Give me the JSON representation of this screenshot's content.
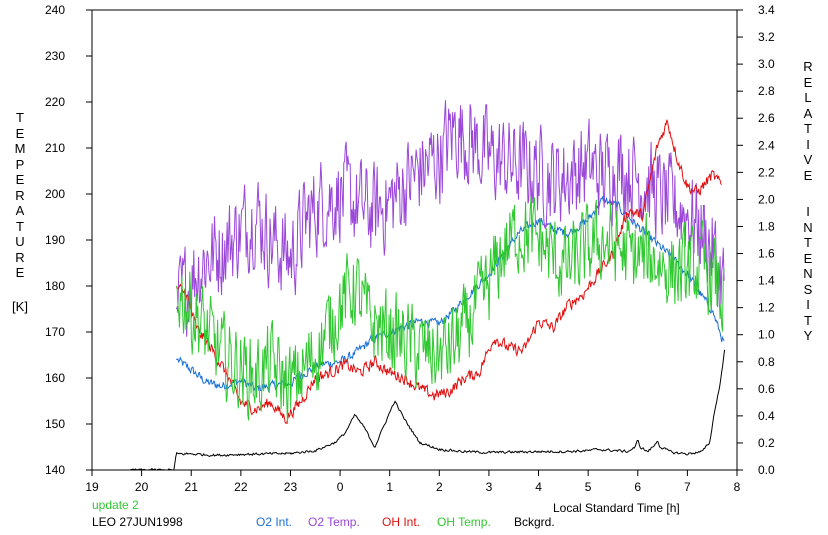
{
  "chart_data": {
    "type": "line",
    "xlabel": "Local Standard Time [h]",
    "ylabel_left_letters": [
      "T",
      "E",
      "M",
      "P",
      "E",
      "R",
      "A",
      "T",
      "U",
      "R",
      "E"
    ],
    "ylabel_left_unit": "[K]",
    "ylabel_right_letters_1": [
      "R",
      "E",
      "L",
      "A",
      "T",
      "I",
      "V",
      "E"
    ],
    "ylabel_right_letters_2": [
      "I",
      "N",
      "T",
      "E",
      "N",
      "S",
      "I",
      "T",
      "Y"
    ],
    "xlim": [
      19,
      32
    ],
    "x_ticks": [
      19,
      20,
      21,
      22,
      23,
      24,
      25,
      26,
      27,
      28,
      29,
      30,
      31,
      32
    ],
    "x_tick_labels": [
      "19",
      "20",
      "21",
      "22",
      "23",
      "0",
      "1",
      "2",
      "3",
      "4",
      "5",
      "6",
      "7",
      "8"
    ],
    "ylim_left": [
      140,
      240
    ],
    "y_ticks_left": [
      140,
      150,
      160,
      170,
      180,
      190,
      200,
      210,
      220,
      230,
      240
    ],
    "y_tick_labels_left": [
      "140",
      "150",
      "160",
      "170",
      "180",
      "190",
      "200",
      "210",
      "220",
      "230",
      "240"
    ],
    "ylim_right": [
      0,
      3.4
    ],
    "y_ticks_right": [
      0,
      0.2,
      0.4,
      0.6,
      0.8,
      1.0,
      1.2,
      1.4,
      1.6,
      1.8,
      2.0,
      2.2,
      2.4,
      2.6,
      2.8,
      3.0,
      3.2,
      3.4
    ],
    "y_tick_labels_right": [
      "0.0",
      "0.2",
      "0.4",
      "0.6",
      "0.8",
      "1.0",
      "1.2",
      "1.4",
      "1.6",
      "1.8",
      "2.0",
      "2.2",
      "2.4",
      "2.6",
      "2.8",
      "3.0",
      "3.2",
      "3.4"
    ],
    "grid": false,
    "series": [
      {
        "name": "O2 Int.",
        "color": "#1a6fd6",
        "axis": "right",
        "noise": 0.03,
        "x": [
          20.7,
          21.0,
          21.3,
          21.6,
          22.0,
          22.3,
          22.6,
          23.0,
          23.3,
          23.6,
          24.0,
          24.3,
          24.6,
          25.0,
          25.3,
          25.6,
          26.0,
          26.3,
          26.6,
          27.0,
          27.3,
          27.6,
          28.0,
          28.3,
          28.6,
          29.0,
          29.3,
          29.6,
          30.0,
          30.3,
          30.6,
          31.0,
          31.3,
          31.5,
          31.75
        ],
        "y": [
          0.82,
          0.74,
          0.65,
          0.62,
          0.66,
          0.6,
          0.62,
          0.64,
          0.72,
          0.78,
          0.8,
          0.86,
          0.95,
          1.02,
          1.06,
          1.1,
          1.08,
          1.18,
          1.3,
          1.45,
          1.6,
          1.75,
          1.85,
          1.78,
          1.75,
          1.85,
          2.0,
          1.95,
          1.8,
          1.7,
          1.6,
          1.45,
          1.28,
          1.18,
          0.92
        ]
      },
      {
        "name": "O2 Temp.",
        "color": "#9b48d8",
        "axis": "left",
        "noise": 9,
        "x": [
          20.7,
          21.0,
          21.3,
          21.6,
          22.0,
          22.3,
          22.6,
          23.0,
          23.3,
          23.6,
          24.0,
          24.3,
          24.6,
          25.0,
          25.3,
          25.6,
          26.0,
          26.3,
          26.6,
          27.0,
          27.3,
          27.6,
          28.0,
          28.3,
          28.6,
          29.0,
          29.3,
          29.6,
          30.0,
          30.3,
          30.6,
          31.0,
          31.3,
          31.5,
          31.75
        ],
        "y": [
          175,
          182,
          186,
          188,
          192,
          196,
          190,
          186,
          194,
          198,
          200,
          198,
          196,
          198,
          202,
          205,
          208,
          214,
          212,
          208,
          207,
          206,
          205,
          203,
          204,
          206,
          204,
          206,
          204,
          201,
          198,
          196,
          192,
          188,
          180
        ]
      },
      {
        "name": "OH Int.",
        "color": "#e01010",
        "axis": "right",
        "noise": 0.04,
        "x": [
          20.7,
          20.9,
          21.1,
          21.4,
          21.7,
          22.0,
          22.3,
          22.6,
          22.9,
          23.2,
          23.5,
          23.8,
          24.1,
          24.4,
          24.7,
          25.0,
          25.3,
          25.6,
          25.9,
          26.2,
          26.5,
          26.8,
          27.1,
          27.4,
          27.7,
          28.0,
          28.3,
          28.6,
          28.9,
          29.2,
          29.5,
          29.8,
          30.1,
          30.4,
          30.6,
          30.8,
          31.0,
          31.2,
          31.5,
          31.7
        ],
        "y": [
          1.35,
          1.3,
          1.05,
          0.9,
          0.72,
          0.5,
          0.45,
          0.5,
          0.38,
          0.5,
          0.68,
          0.72,
          0.78,
          0.72,
          0.8,
          0.72,
          0.68,
          0.6,
          0.55,
          0.58,
          0.68,
          0.72,
          0.98,
          0.9,
          0.88,
          1.1,
          1.05,
          1.22,
          1.3,
          1.45,
          1.6,
          1.92,
          1.88,
          2.4,
          2.58,
          2.3,
          2.1,
          2.05,
          2.18,
          2.1
        ]
      },
      {
        "name": "OH Temp.",
        "color": "#30c830",
        "axis": "left",
        "noise": 8,
        "x": [
          20.7,
          21.0,
          21.3,
          21.6,
          22.0,
          22.3,
          22.6,
          23.0,
          23.3,
          23.6,
          24.0,
          24.3,
          24.6,
          25.0,
          25.3,
          25.6,
          26.0,
          26.3,
          26.6,
          27.0,
          27.3,
          27.6,
          28.0,
          28.3,
          28.6,
          29.0,
          29.3,
          29.6,
          30.0,
          30.3,
          30.6,
          31.0,
          31.3,
          31.5,
          31.75
        ],
        "y": [
          180,
          175,
          170,
          165,
          162,
          160,
          163,
          158,
          162,
          167,
          176,
          180,
          172,
          170,
          168,
          166,
          165,
          167,
          172,
          180,
          188,
          192,
          190,
          186,
          184,
          188,
          190,
          188,
          186,
          186,
          184,
          183,
          184,
          182,
          176
        ]
      },
      {
        "name": "Bckgrd.",
        "color": "#000000",
        "axis": "left",
        "noise": 0.25,
        "x": [
          19.75,
          20.3,
          20.65,
          20.7,
          21.0,
          21.5,
          22.0,
          22.5,
          23.0,
          23.5,
          23.9,
          24.1,
          24.3,
          24.5,
          24.7,
          24.9,
          25.1,
          25.3,
          25.6,
          26.0,
          26.5,
          27.0,
          27.5,
          28.0,
          28.5,
          29.0,
          29.2,
          29.4,
          29.6,
          29.8,
          29.95,
          30.0,
          30.05,
          30.2,
          30.35,
          30.4,
          30.45,
          30.7,
          31.0,
          31.3,
          31.45,
          31.55,
          31.65,
          31.75
        ],
        "y": [
          140,
          140,
          140,
          143.5,
          143.5,
          143.2,
          143.4,
          143.5,
          143.6,
          144.2,
          146,
          148,
          152,
          149,
          145,
          150,
          155,
          151,
          146,
          144.5,
          144,
          143.8,
          143.9,
          144,
          144,
          144.2,
          144.5,
          144.3,
          144.2,
          144,
          145,
          146.5,
          145,
          144,
          145.5,
          146.5,
          145,
          143.8,
          143.5,
          144,
          146,
          153,
          158,
          166
        ]
      }
    ]
  },
  "bottom": {
    "update_text": "update 2",
    "station_date": "LEO 27JUN1998",
    "legend": [
      {
        "label": "O2 Int.",
        "color": "#1a6fd6"
      },
      {
        "label": "O2 Temp.",
        "color": "#9b48d8"
      },
      {
        "label": "OH Int.",
        "color": "#e01010"
      },
      {
        "label": "OH Temp.",
        "color": "#30c830"
      },
      {
        "label": "Bckgrd.",
        "color": "#000000"
      }
    ]
  }
}
